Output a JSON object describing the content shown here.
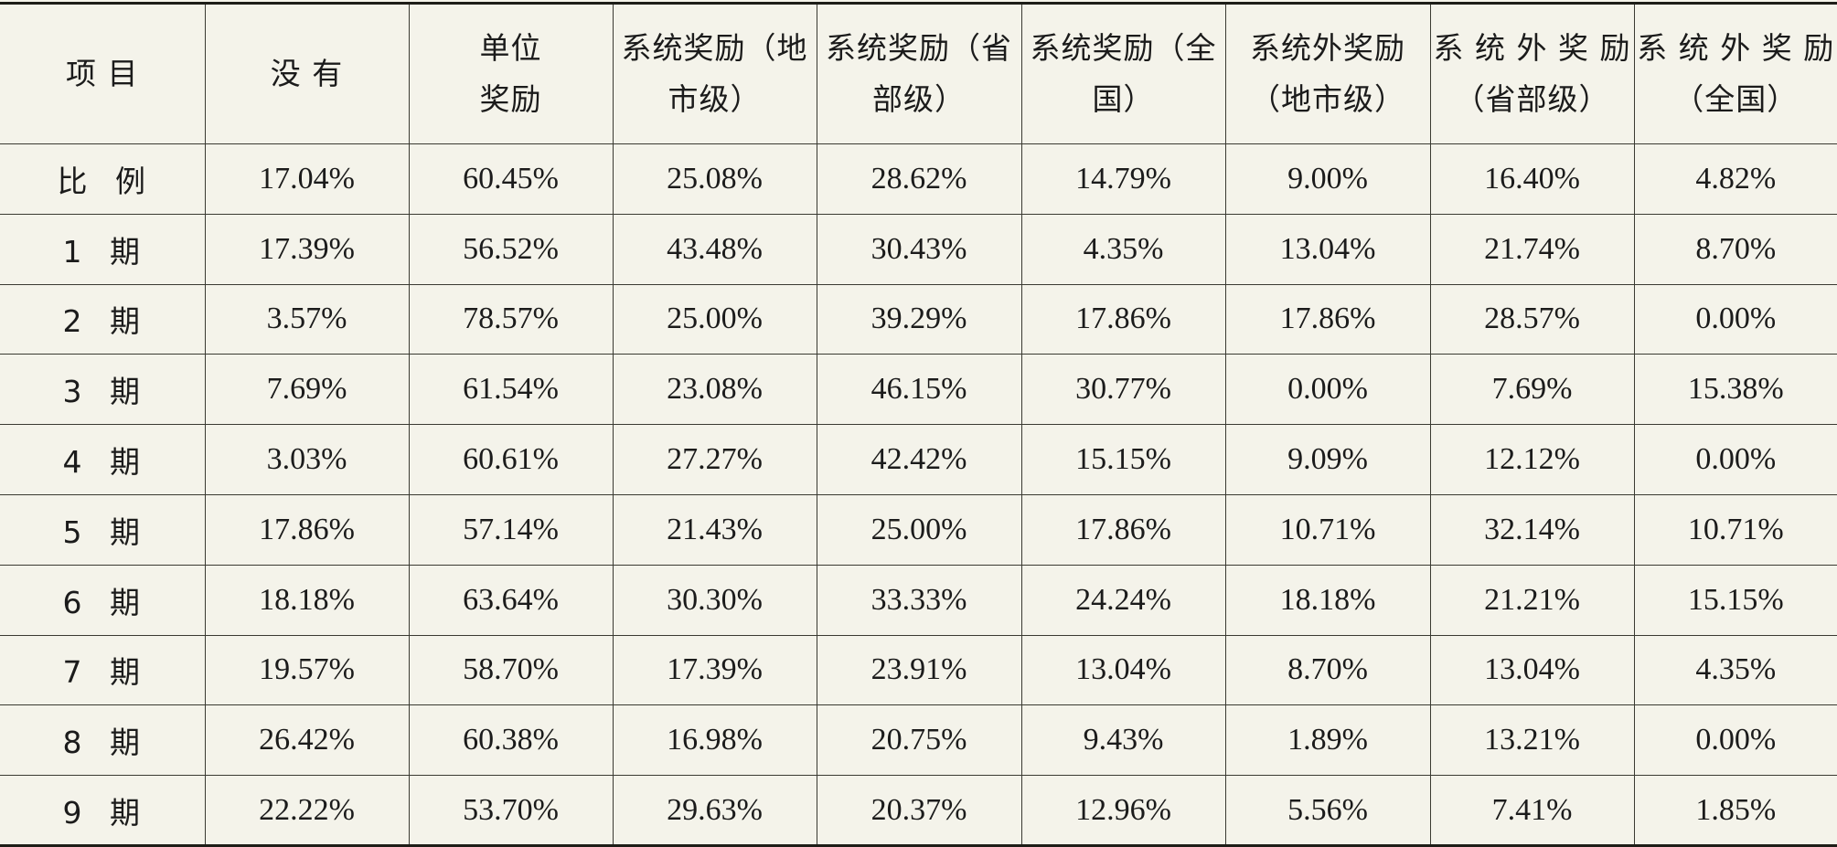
{
  "table": {
    "headers": [
      [
        "项  目"
      ],
      [
        "没  有"
      ],
      [
        "单位",
        "奖励"
      ],
      [
        "系统奖励（地",
        "市级）"
      ],
      [
        "系统奖励（省",
        "部级）"
      ],
      [
        "系统奖励（全",
        "国）"
      ],
      [
        "系统外奖励",
        "（地市级）"
      ],
      [
        "系 统 外 奖 励",
        "（省部级）"
      ],
      [
        "系 统 外 奖 励",
        "（全国）"
      ]
    ],
    "rows": [
      {
        "label": "比 例",
        "values": [
          "17.04%",
          "60.45%",
          "25.08%",
          "28.62%",
          "14.79%",
          "9.00%",
          "16.40%",
          "4.82%"
        ]
      },
      {
        "label": "1 期",
        "values": [
          "17.39%",
          "56.52%",
          "43.48%",
          "30.43%",
          "4.35%",
          "13.04%",
          "21.74%",
          "8.70%"
        ]
      },
      {
        "label": "2 期",
        "values": [
          "3.57%",
          "78.57%",
          "25.00%",
          "39.29%",
          "17.86%",
          "17.86%",
          "28.57%",
          "0.00%"
        ]
      },
      {
        "label": "3 期",
        "values": [
          "7.69%",
          "61.54%",
          "23.08%",
          "46.15%",
          "30.77%",
          "0.00%",
          "7.69%",
          "15.38%"
        ]
      },
      {
        "label": "4 期",
        "values": [
          "3.03%",
          "60.61%",
          "27.27%",
          "42.42%",
          "15.15%",
          "9.09%",
          "12.12%",
          "0.00%"
        ]
      },
      {
        "label": "5 期",
        "values": [
          "17.86%",
          "57.14%",
          "21.43%",
          "25.00%",
          "17.86%",
          "10.71%",
          "32.14%",
          "10.71%"
        ]
      },
      {
        "label": "6 期",
        "values": [
          "18.18%",
          "63.64%",
          "30.30%",
          "33.33%",
          "24.24%",
          "18.18%",
          "21.21%",
          "15.15%"
        ]
      },
      {
        "label": "7 期",
        "values": [
          "19.57%",
          "58.70%",
          "17.39%",
          "23.91%",
          "13.04%",
          "8.70%",
          "13.04%",
          "4.35%"
        ]
      },
      {
        "label": "8 期",
        "values": [
          "26.42%",
          "60.38%",
          "16.98%",
          "20.75%",
          "9.43%",
          "1.89%",
          "13.21%",
          "0.00%"
        ]
      },
      {
        "label": "9 期",
        "values": [
          "22.22%",
          "53.70%",
          "29.63%",
          "20.37%",
          "12.96%",
          "5.56%",
          "7.41%",
          "1.85%"
        ]
      }
    ]
  }
}
